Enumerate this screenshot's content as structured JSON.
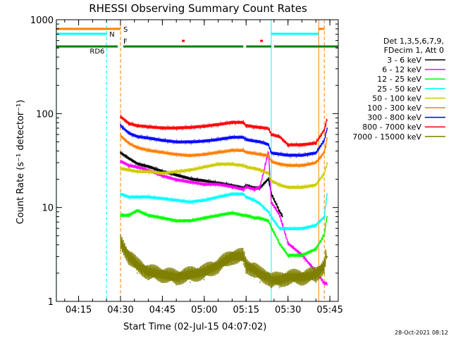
{
  "chart_data": {
    "type": "line",
    "title": "RHESSI Observing Summary Count Rates",
    "xlabel": "Start Time (02-Jul-15 04:07:02)",
    "ylabel": "Count Rate (s⁻¹ detector⁻¹)",
    "y_scale": "log",
    "ylim": [
      1,
      1000
    ],
    "xlim": [
      "04:07:02",
      "05:48:00"
    ],
    "x_ticks": [
      "04:15",
      "04:30",
      "04:45",
      "05:00",
      "05:15",
      "05:30",
      "05:45"
    ],
    "y_ticks": [
      "1",
      "10",
      "100",
      "1000"
    ],
    "grid": false,
    "legend_placement": "right",
    "legend_header": [
      "Det 1,3,5,6,7,9,",
      "FDecim 1, Att 0"
    ],
    "timestamp": "28-Oct-2021 08:12",
    "flags": [
      {
        "label": "S",
        "color": "#ff7f00",
        "segments": [
          [
            "04:07",
            "04:30"
          ],
          [
            "05:41",
            "05:43"
          ]
        ]
      },
      {
        "label": "N",
        "color": "#00ffff",
        "segments": [
          [
            "04:07",
            "04:25"
          ],
          [
            "05:24",
            "05:41"
          ]
        ]
      },
      {
        "label": "F",
        "color": "#ff0000",
        "segments": [
          [
            "04:52",
            "04:53"
          ],
          [
            "05:20",
            "05:21"
          ]
        ]
      },
      {
        "label": "RD6",
        "color": "#007f00",
        "segments": [
          [
            "04:07",
            "04:29"
          ],
          [
            "04:31",
            "05:14"
          ],
          [
            "05:15",
            "05:24"
          ],
          [
            "05:25",
            "05:48"
          ]
        ]
      }
    ],
    "vlines": [
      {
        "time": "04:07",
        "color": "#00ffff",
        "style": "solid"
      },
      {
        "time": "04:25",
        "color": "#00ffff",
        "style": "dashed"
      },
      {
        "time": "04:30",
        "color": "#ff7f00",
        "style": "dashed"
      },
      {
        "time": "05:24",
        "color": "#00ffff",
        "style": "solid"
      },
      {
        "time": "05:41",
        "color": "#ff7f00",
        "style": "solid"
      },
      {
        "time": "05:43",
        "color": "#ff7f00",
        "style": "dashed"
      }
    ],
    "series": [
      {
        "name": "3 - 6 keV",
        "color": "#000000",
        "x": [
          "04:30",
          "04:33",
          "04:36",
          "04:40",
          "04:45",
          "04:50",
          "04:55",
          "05:00",
          "05:05",
          "05:10",
          "05:14",
          "05:15",
          "05:18",
          "05:20",
          "05:23",
          "05:24",
          "05:25",
          "05:27",
          "05:28"
        ],
        "y": [
          38,
          33,
          29,
          27,
          24,
          22,
          20,
          19,
          18,
          17,
          16,
          17,
          16,
          16,
          20,
          14,
          12,
          9,
          8
        ]
      },
      {
        "name": "6 - 12 keV",
        "color": "#ff00ff",
        "x": [
          "04:30",
          "04:33",
          "04:36",
          "04:40",
          "04:45",
          "04:50",
          "04:55",
          "05:00",
          "05:05",
          "05:10",
          "05:14",
          "05:15",
          "05:18",
          "05:20",
          "05:23",
          "05:24",
          "05:27",
          "05:30",
          "05:35",
          "05:40",
          "05:43",
          "05:44"
        ],
        "y": [
          30,
          27,
          26,
          24,
          21,
          19,
          18,
          17,
          17,
          16,
          15,
          16,
          15,
          16,
          38,
          11,
          8,
          4,
          3,
          2,
          1.5,
          1.5
        ]
      },
      {
        "name": "12 - 25 keV",
        "color": "#00ff00",
        "x": [
          "04:30",
          "04:33",
          "04:36",
          "04:40",
          "04:45",
          "04:50",
          "04:55",
          "05:00",
          "05:05",
          "05:10",
          "05:14",
          "05:15",
          "05:18",
          "05:20",
          "05:23",
          "05:24",
          "05:27",
          "05:30",
          "05:35",
          "05:40",
          "05:43",
          "05:44"
        ],
        "y": [
          8,
          8,
          9,
          8,
          7.5,
          7,
          7,
          7.5,
          8,
          8.5,
          8,
          8,
          7.5,
          7.5,
          7,
          6,
          4,
          3,
          3,
          3.5,
          5,
          8
        ]
      },
      {
        "name": "25 - 50 keV",
        "color": "#00ffff",
        "x": [
          "04:30",
          "04:33",
          "04:36",
          "04:40",
          "04:45",
          "04:50",
          "04:55",
          "05:00",
          "05:05",
          "05:10",
          "05:14",
          "05:15",
          "05:18",
          "05:20",
          "05:23",
          "05:24",
          "05:27",
          "05:30",
          "05:35",
          "05:40",
          "05:43",
          "05:44"
        ],
        "y": [
          14,
          13,
          13,
          13,
          12.5,
          12,
          11.5,
          12,
          13,
          14,
          14,
          13,
          12,
          11,
          9,
          8,
          6,
          6,
          6,
          6.5,
          8,
          14
        ]
      },
      {
        "name": "50 - 100 keV",
        "color": "#cccc00",
        "x": [
          "04:30",
          "04:33",
          "04:36",
          "04:40",
          "04:45",
          "04:50",
          "04:55",
          "05:00",
          "05:05",
          "05:10",
          "05:14",
          "05:15",
          "05:18",
          "05:20",
          "05:23",
          "05:24",
          "05:27",
          "05:30",
          "05:35",
          "05:40",
          "05:43",
          "05:44"
        ],
        "y": [
          27,
          26,
          25,
          25,
          24,
          25,
          26,
          28,
          30,
          30,
          29,
          28,
          27,
          26,
          24,
          20,
          18,
          17,
          17,
          18,
          24,
          30
        ]
      },
      {
        "name": "100 - 300 keV",
        "color": "#ff7f00",
        "x": [
          "04:30",
          "04:33",
          "04:36",
          "04:40",
          "04:45",
          "04:50",
          "04:55",
          "05:00",
          "05:05",
          "05:10",
          "05:14",
          "05:15",
          "05:18",
          "05:20",
          "05:23",
          "05:24",
          "05:27",
          "05:30",
          "05:35",
          "05:40",
          "05:43",
          "05:44"
        ],
        "y": [
          60,
          50,
          45,
          42,
          40,
          38,
          37,
          38,
          40,
          42,
          42,
          40,
          39,
          38,
          37,
          32,
          30,
          29,
          29,
          31,
          40,
          55
        ]
      },
      {
        "name": "300 - 800 keV",
        "color": "#0000ff",
        "x": [
          "04:30",
          "04:33",
          "04:36",
          "04:40",
          "04:45",
          "04:50",
          "04:55",
          "05:00",
          "05:05",
          "05:10",
          "05:14",
          "05:15",
          "05:18",
          "05:20",
          "05:23",
          "05:24",
          "05:27",
          "05:30",
          "05:35",
          "05:40",
          "05:43",
          "05:44"
        ],
        "y": [
          75,
          62,
          57,
          55,
          52,
          50,
          50,
          51,
          53,
          56,
          56,
          53,
          51,
          50,
          47,
          38,
          37,
          36,
          36,
          38,
          52,
          70
        ]
      },
      {
        "name": "800 - 7000 keV",
        "color": "#ff0000",
        "x": [
          "04:30",
          "04:33",
          "04:36",
          "04:40",
          "04:45",
          "04:50",
          "04:55",
          "05:00",
          "05:05",
          "05:10",
          "05:14",
          "05:15",
          "05:18",
          "05:20",
          "05:23",
          "05:24",
          "05:27",
          "05:30",
          "05:35",
          "05:40",
          "05:43",
          "05:44"
        ],
        "y": [
          90,
          76,
          72,
          70,
          68,
          68,
          69,
          71,
          74,
          78,
          78,
          72,
          70,
          69,
          67,
          58,
          55,
          45,
          45,
          47,
          65,
          85
        ]
      },
      {
        "name": "7000 - 15000 keV",
        "color": "#7f7f00",
        "x": [
          "04:30",
          "04:33",
          "04:36",
          "04:40",
          "04:45",
          "04:50",
          "04:55",
          "05:00",
          "05:05",
          "05:10",
          "05:14",
          "05:15",
          "05:18",
          "05:20",
          "05:23",
          "05:24",
          "05:27",
          "05:30",
          "05:35",
          "05:40",
          "05:43",
          "05:44"
        ],
        "y": [
          3.5,
          2.5,
          2,
          1.7,
          1.6,
          1.5,
          1.6,
          1.7,
          2,
          2.5,
          2.5,
          2,
          1.8,
          1.6,
          1.5,
          1.4,
          1.4,
          1.5,
          1.5,
          1.6,
          2,
          3
        ]
      }
    ]
  }
}
